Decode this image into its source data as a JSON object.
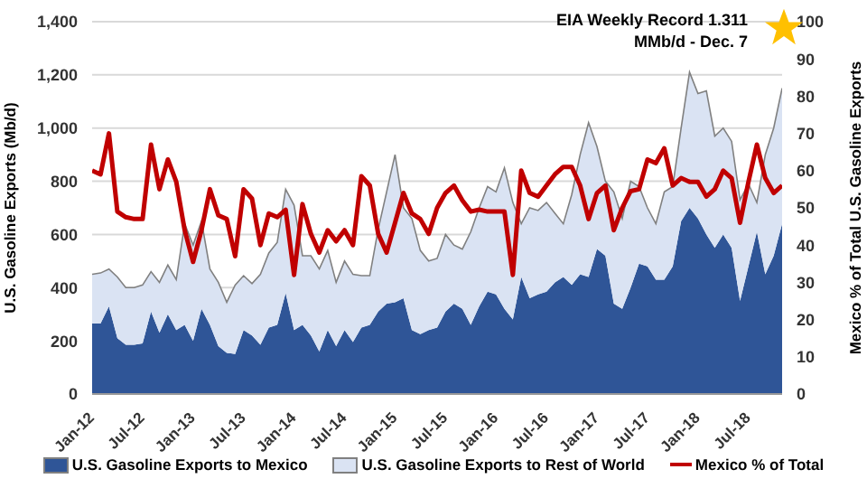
{
  "chart_data": {
    "type": "area",
    "stacked": true,
    "ylabel": "U.S. Gasoline Exports (Mb/d)",
    "y2label": "Mexico % of Total U.S. Gasoline Exports",
    "annotations": [
      "EIA Weekly Record 1.311 MMb/d - Dec. 7"
    ],
    "categories": [
      "Jan-12",
      null,
      null,
      null,
      null,
      null,
      "Jul-12",
      null,
      null,
      null,
      null,
      null,
      "Jan-13",
      null,
      null,
      null,
      null,
      null,
      "Jul-13",
      null,
      null,
      null,
      null,
      null,
      "Jan-14",
      null,
      null,
      null,
      null,
      null,
      "Jul-14",
      null,
      null,
      null,
      null,
      null,
      "Jan-15",
      null,
      null,
      null,
      null,
      null,
      "Jul-15",
      null,
      null,
      null,
      null,
      null,
      "Jan-16",
      null,
      null,
      null,
      null,
      null,
      "Jul-16",
      null,
      null,
      null,
      null,
      null,
      "Jan-17",
      null,
      null,
      null,
      null,
      null,
      "Jul-17",
      null,
      null,
      null,
      null,
      null,
      "Jan-18",
      null,
      null,
      null,
      null,
      null,
      "Jul-18",
      null,
      null,
      null,
      null
    ],
    "series": [
      {
        "name": "U.S. Gasoline Exports to Mexico",
        "color": "#2f5597",
        "values": [
          265,
          265,
          330,
          210,
          185,
          185,
          190,
          310,
          230,
          300,
          240,
          260,
          200,
          320,
          260,
          180,
          155,
          150,
          240,
          220,
          185,
          250,
          260,
          380,
          240,
          260,
          220,
          160,
          240,
          180,
          240,
          195,
          250,
          260,
          310,
          340,
          345,
          360,
          240,
          225,
          240,
          250,
          310,
          340,
          320,
          260,
          330,
          385,
          375,
          320,
          280,
          440,
          360,
          375,
          385,
          420,
          440,
          410,
          450,
          440,
          545,
          520,
          340,
          320,
          400,
          490,
          480,
          430,
          430,
          480,
          650,
          700,
          660,
          600,
          550,
          600,
          550,
          350,
          480,
          610,
          450,
          520,
          640
        ]
      },
      {
        "name": "U.S. Gasoline Exports to Rest of World",
        "color": "#dae3f3",
        "values": [
          185,
          190,
          140,
          230,
          215,
          215,
          220,
          150,
          190,
          185,
          190,
          380,
          360,
          330,
          210,
          240,
          190,
          260,
          205,
          195,
          265,
          280,
          310,
          390,
          470,
          260,
          300,
          310,
          300,
          240,
          260,
          255,
          195,
          185,
          310,
          420,
          555,
          340,
          420,
          315,
          260,
          260,
          290,
          220,
          225,
          350,
          370,
          395,
          385,
          530,
          440,
          200,
          340,
          315,
          335,
          260,
          200,
          340,
          450,
          580,
          385,
          280,
          420,
          340,
          400,
          290,
          220,
          210,
          330,
          300,
          350,
          510,
          470,
          540,
          420,
          400,
          400,
          380,
          310,
          110,
          450,
          480,
          510
        ]
      },
      {
        "name": "Mexico % of Total",
        "type": "line",
        "axis": "y2",
        "color": "#c00000",
        "values": [
          60,
          59,
          70,
          49,
          47.5,
          47,
          47,
          67,
          55,
          63,
          57,
          44,
          35.5,
          44,
          55,
          48,
          47,
          37,
          55,
          52.5,
          40,
          48.5,
          47.5,
          49.5,
          32,
          51,
          43,
          38,
          44,
          41,
          44,
          40,
          58.5,
          56,
          43,
          38,
          46,
          54,
          48.5,
          47,
          43,
          50,
          54,
          56,
          52,
          49,
          49.5,
          49,
          49,
          49,
          32,
          60,
          54,
          53,
          56,
          59,
          61,
          61,
          56,
          47,
          54,
          56,
          44,
          50,
          54.5,
          55,
          63,
          62,
          66,
          56,
          58,
          57,
          57,
          53,
          55,
          60,
          58,
          46,
          57,
          67,
          58,
          54,
          56
        ]
      }
    ],
    "ylim": [
      0,
      1400
    ],
    "yticks": [
      0,
      200,
      400,
      600,
      800,
      {
        "value": 1000,
        "label": "1,000"
      },
      {
        "value": 1200,
        "label": "1,200"
      },
      {
        "value": 1400,
        "label": "1,400"
      }
    ],
    "y2lim": [
      0,
      100
    ],
    "y2ticks": [
      0,
      10,
      20,
      30,
      40,
      50,
      60,
      70,
      80,
      90,
      100
    ],
    "grid": "y",
    "legend": "bottom"
  }
}
